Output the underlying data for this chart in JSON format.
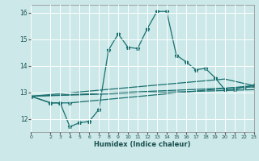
{
  "title": "",
  "xlabel": "Humidex (Indice chaleur)",
  "ylabel": "",
  "bg_color": "#cce8e8",
  "line_color": "#1a7070",
  "grid_color": "#ffffff",
  "xlim": [
    0,
    23
  ],
  "ylim": [
    11.5,
    16.3
  ],
  "yticks": [
    12,
    13,
    14,
    15,
    16
  ],
  "xticks": [
    0,
    2,
    3,
    4,
    5,
    6,
    7,
    8,
    9,
    10,
    11,
    12,
    13,
    14,
    15,
    16,
    17,
    18,
    19,
    20,
    21,
    22,
    23
  ],
  "line1_x": [
    0,
    2,
    3,
    4,
    5,
    6,
    7,
    8,
    9,
    10,
    11,
    12,
    13,
    14,
    15,
    16,
    17,
    18,
    19,
    20,
    21,
    22,
    23
  ],
  "line1_y": [
    12.85,
    12.6,
    12.6,
    11.7,
    11.85,
    11.9,
    12.35,
    14.6,
    15.2,
    14.7,
    14.65,
    15.4,
    16.05,
    16.05,
    14.4,
    14.15,
    13.85,
    13.9,
    13.55,
    13.1,
    13.1,
    13.2,
    13.25
  ],
  "line2_x": [
    0,
    2,
    3,
    4,
    23
  ],
  "line2_y": [
    12.85,
    12.6,
    12.6,
    12.6,
    13.25
  ],
  "line3_x": [
    0,
    23
  ],
  "line3_y": [
    12.85,
    13.2
  ],
  "line4_x": [
    0,
    23
  ],
  "line4_y": [
    12.85,
    13.1
  ],
  "line5_x": [
    0,
    20,
    23
  ],
  "line5_y": [
    12.85,
    13.5,
    13.25
  ]
}
